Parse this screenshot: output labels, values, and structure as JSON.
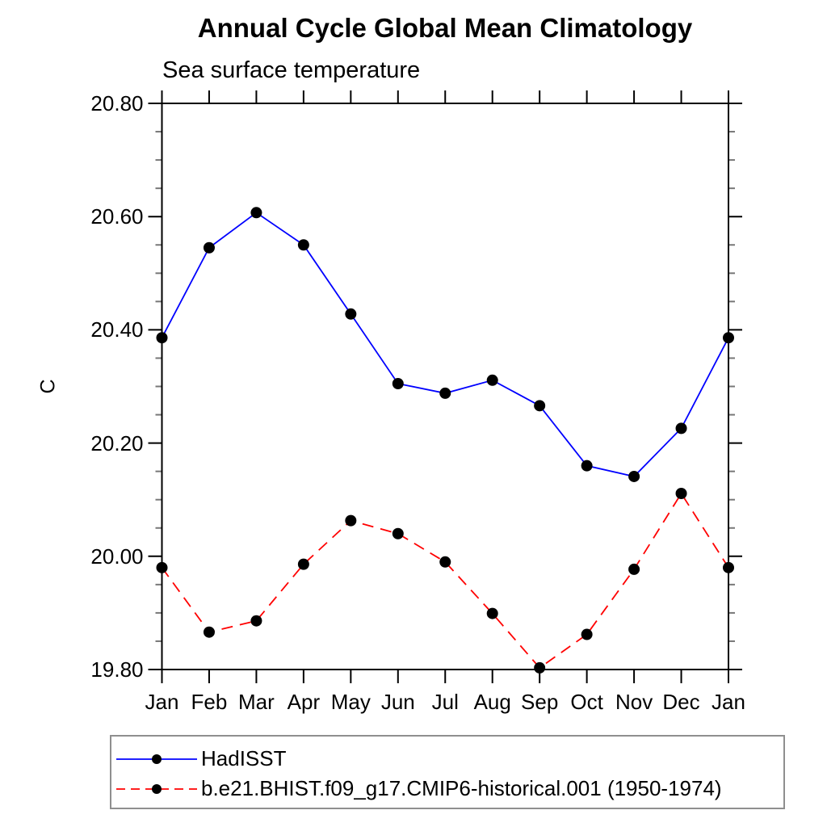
{
  "chart_data": {
    "type": "line",
    "title": "Annual Cycle Global Mean Climatology",
    "subtitle": "Sea surface temperature",
    "xlabel": "",
    "ylabel": "C",
    "categories": [
      "Jan",
      "Feb",
      "Mar",
      "Apr",
      "May",
      "Jun",
      "Jul",
      "Aug",
      "Sep",
      "Oct",
      "Nov",
      "Dec",
      "Jan"
    ],
    "ylim": [
      19.8,
      20.8
    ],
    "yticks": [
      19.8,
      20.0,
      20.2,
      20.4,
      20.6,
      20.8
    ],
    "ytick_labels": [
      "19.80",
      "20.00",
      "20.20",
      "20.40",
      "20.60",
      "20.80"
    ],
    "minor_tick_step": 0.05,
    "grid": false,
    "legend_position": "bottom-left",
    "marker_color": "#000000",
    "frame_color": "#000000",
    "minor_tick_color": "#777777",
    "series": [
      {
        "name": "HadISST",
        "color": "#0000ff",
        "line_style": "solid",
        "marker": "filled-circle",
        "values": [
          20.386,
          20.545,
          20.607,
          20.55,
          20.428,
          20.305,
          20.288,
          20.311,
          20.266,
          20.16,
          20.141,
          20.226,
          20.386
        ]
      },
      {
        "name": "b.e21.BHIST.f09_g17.CMIP6-historical.001 (1950-1974)",
        "color": "#ff0000",
        "line_style": "dashed",
        "marker": "filled-circle",
        "values": [
          19.98,
          19.866,
          19.886,
          19.986,
          20.063,
          20.04,
          19.99,
          19.899,
          19.803,
          19.862,
          19.977,
          20.111,
          19.98
        ]
      }
    ]
  }
}
